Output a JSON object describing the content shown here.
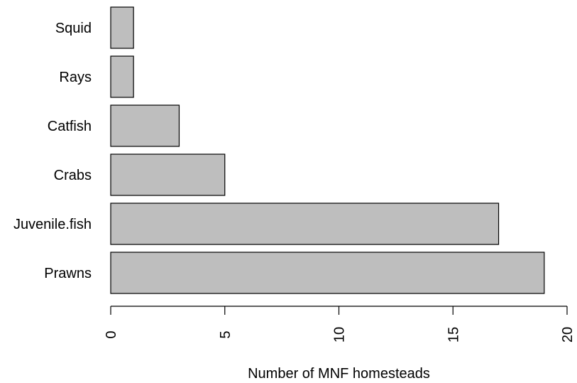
{
  "chart_data": {
    "type": "bar",
    "orientation": "horizontal",
    "categories": [
      "Squid",
      "Rays",
      "Catfish",
      "Crabs",
      "Juvenile.fish",
      "Prawns"
    ],
    "values": [
      1,
      1,
      3,
      5,
      17,
      19
    ],
    "xlabel": "Number of MNF homesteads",
    "ylabel": "",
    "xlim": [
      0,
      20
    ],
    "xticks": [
      0,
      5,
      10,
      15,
      20
    ],
    "grid": false,
    "bar_color": "#bebebe",
    "edge_color": "#000000"
  }
}
